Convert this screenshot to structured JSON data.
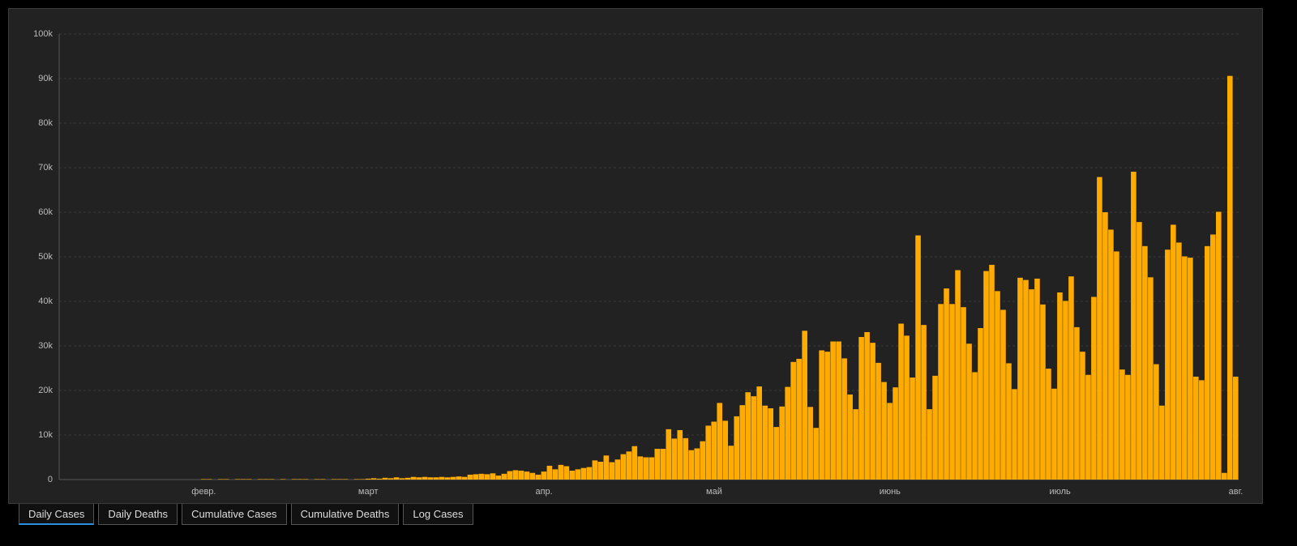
{
  "chart_data": {
    "type": "bar",
    "color": "#ffab00",
    "grid": true,
    "ylim": [
      0,
      100000
    ],
    "yticks": [
      0,
      {
        "value": 10000,
        "label": "10k"
      },
      {
        "value": 20000,
        "label": "20k"
      },
      {
        "value": 30000,
        "label": "30k"
      },
      {
        "value": 40000,
        "label": "40k"
      },
      {
        "value": 50000,
        "label": "50k"
      },
      {
        "value": 60000,
        "label": "60k"
      },
      {
        "value": 70000,
        "label": "70k"
      },
      {
        "value": 80000,
        "label": "80k"
      },
      {
        "value": 90000,
        "label": "90k"
      },
      {
        "value": 100000,
        "label": "100k"
      }
    ],
    "categories": [
      null,
      null,
      null,
      null,
      null,
      null,
      null,
      null,
      null,
      null,
      null,
      null,
      null,
      null,
      null,
      null,
      null,
      null,
      null,
      null,
      null,
      null,
      null,
      null,
      null,
      "февр.",
      null,
      null,
      null,
      null,
      null,
      null,
      null,
      null,
      null,
      null,
      null,
      null,
      null,
      null,
      null,
      null,
      null,
      null,
      null,
      null,
      null,
      null,
      null,
      null,
      null,
      null,
      null,
      null,
      "март",
      null,
      null,
      null,
      null,
      null,
      null,
      null,
      null,
      null,
      null,
      null,
      null,
      null,
      null,
      null,
      null,
      null,
      null,
      null,
      null,
      null,
      null,
      null,
      null,
      null,
      null,
      null,
      null,
      null,
      null,
      "апр.",
      null,
      null,
      null,
      null,
      null,
      null,
      null,
      null,
      null,
      null,
      null,
      null,
      null,
      null,
      null,
      null,
      null,
      null,
      null,
      null,
      null,
      null,
      null,
      null,
      null,
      null,
      null,
      null,
      null,
      "май",
      null,
      null,
      null,
      null,
      null,
      null,
      null,
      null,
      null,
      null,
      null,
      null,
      null,
      null,
      null,
      null,
      null,
      null,
      null,
      null,
      null,
      null,
      null,
      null,
      null,
      null,
      null,
      null,
      null,
      null,
      "июнь",
      null,
      null,
      null,
      null,
      null,
      null,
      null,
      null,
      null,
      null,
      null,
      null,
      null,
      null,
      null,
      null,
      null,
      null,
      null,
      null,
      null,
      null,
      null,
      null,
      null,
      null,
      null,
      null,
      null,
      "июль",
      null,
      null,
      null,
      null,
      null,
      null,
      null,
      null,
      null,
      null,
      null,
      null,
      null,
      null,
      null,
      null,
      null,
      null,
      null,
      null,
      null,
      null,
      null,
      null,
      null,
      null,
      null,
      null,
      null,
      null,
      "авг."
    ],
    "values": [
      0,
      0,
      0,
      0,
      0,
      0,
      0,
      0,
      0,
      0,
      0,
      0,
      0,
      0,
      0,
      0,
      0,
      0,
      0,
      0,
      0,
      0,
      0,
      0,
      0,
      100,
      100,
      0,
      100,
      100,
      0,
      100,
      100,
      100,
      0,
      100,
      100,
      100,
      0,
      100,
      0,
      100,
      100,
      100,
      0,
      100,
      100,
      0,
      100,
      100,
      100,
      0,
      100,
      100,
      200,
      300,
      200,
      400,
      300,
      500,
      300,
      400,
      600,
      500,
      600,
      500,
      500,
      600,
      500,
      600,
      700,
      600,
      1100,
      1200,
      1300,
      1200,
      1400,
      900,
      1300,
      1900,
      2100,
      2000,
      1800,
      1500,
      1100,
      1800,
      3100,
      2300,
      3300,
      3000,
      2000,
      2300,
      2600,
      2800,
      4300,
      4000,
      5400,
      3900,
      4500,
      5700,
      6300,
      7500,
      5200,
      5000,
      5000,
      6900,
      6900,
      11300,
      9200,
      11100,
      9300,
      6600,
      7000,
      8600,
      12100,
      13000,
      17200,
      13200,
      7600,
      14200,
      16700,
      19600,
      18700,
      20900,
      16600,
      16000,
      11800,
      16400,
      20800,
      26400,
      27100,
      33400,
      16300,
      11600,
      29000,
      28700,
      31000,
      31000,
      27200,
      19100,
      15800,
      32000,
      33100,
      30700,
      26200,
      21900,
      17200,
      20700,
      35000,
      32300,
      22900,
      54800,
      34700,
      15800,
      23300,
      39400,
      42900,
      39400,
      47000,
      38700,
      30500,
      24100,
      34000,
      46800,
      48200,
      42300,
      38100,
      26100,
      20300,
      45300,
      44800,
      42700,
      45100,
      39300,
      24900,
      20400,
      42000,
      40100,
      45600,
      34200,
      28700,
      23500,
      41000,
      67900,
      60000,
      56100,
      51200,
      24700,
      23500,
      69100,
      57800,
      52400,
      45400,
      25900,
      16600,
      51600,
      57200,
      53200,
      50100,
      49800,
      23100,
      22300,
      52400,
      55000,
      60100,
      1500,
      90600,
      23100
    ]
  },
  "tabs": [
    "Daily Cases",
    "Daily Deaths",
    "Cumulative Cases",
    "Cumulative Deaths",
    "Log Cases"
  ]
}
